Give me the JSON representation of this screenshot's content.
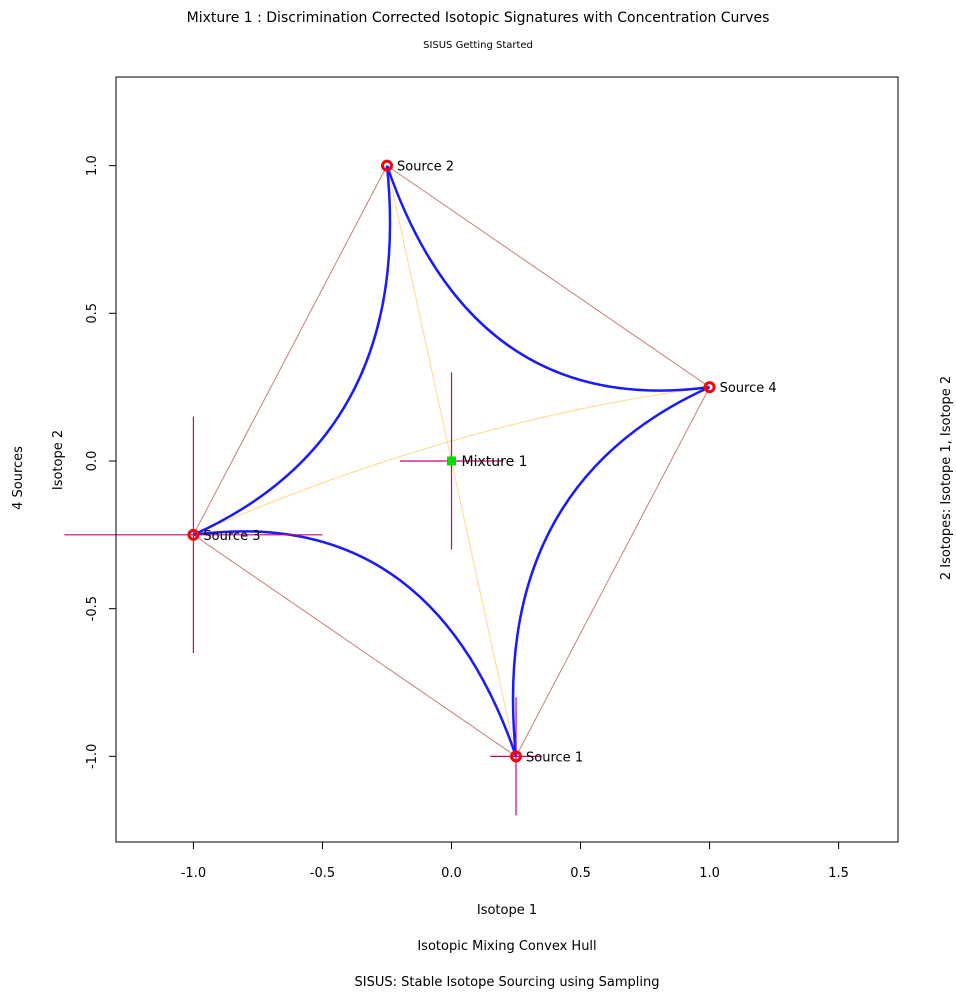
{
  "chart_data": {
    "type": "scatter",
    "title": "Mixture 1 :  Discrimination Corrected Isotopic Signatures with Concentration Curves",
    "subtitle": "SISUS Getting Started",
    "xlabel": "Isotope 1",
    "ylabel": "Isotope 2",
    "caption_1": "Isotopic Mixing Convex Hull",
    "caption_2": "SISUS: Stable Isotope Sourcing using Sampling",
    "left_margin_label": "4  Sources",
    "right_margin_label": "2 Isotopes:  Isotope 1, Isotope 2",
    "xlim": [
      -1.3,
      1.73
    ],
    "ylim": [
      -1.29,
      1.3
    ],
    "x_ticks": [
      -1.0,
      -0.5,
      0.0,
      0.5,
      1.0,
      1.5
    ],
    "x_tick_labels": [
      "-1.0",
      "-0.5",
      "0.0",
      "0.5",
      "1.0",
      "1.5"
    ],
    "y_ticks": [
      -1.0,
      -0.5,
      0.0,
      0.5,
      1.0
    ],
    "y_tick_labels": [
      "-1.0",
      "-0.5",
      "0.0",
      "0.5",
      "1.0"
    ],
    "grid": false,
    "sources": [
      {
        "name": "Source 1",
        "x": 0.25,
        "y": -1.0,
        "sd_x": 0.1,
        "sd_y": 0.2
      },
      {
        "name": "Source 2",
        "x": -0.25,
        "y": 1.0,
        "sd_x": 0,
        "sd_y": 0
      },
      {
        "name": "Source 3",
        "x": -1.0,
        "y": -0.25,
        "sd_x": 0.5,
        "sd_y": 0.4
      },
      {
        "name": "Source 4",
        "x": 1.0,
        "y": 0.25,
        "sd_x": 0,
        "sd_y": 0
      }
    ],
    "mixture": {
      "name": "Mixture 1",
      "x": 0.0,
      "y": 0.0,
      "sd_x": 0.2,
      "sd_y": 0.3
    },
    "hull_order": [
      "Source 1",
      "Source 4",
      "Source 2",
      "Source 3"
    ],
    "diagonals": [
      [
        "Source 2",
        "Source 1"
      ],
      [
        "Source 3",
        "Source 4"
      ]
    ],
    "curve_bend": 0.35,
    "colors": {
      "source_marker": "#ff0000",
      "mixture_marker": "#00dd00",
      "error_bars": "#cc0077",
      "hull": "#c98078",
      "diagonals": "#ffd98a",
      "curves": "#1a1aff"
    }
  }
}
